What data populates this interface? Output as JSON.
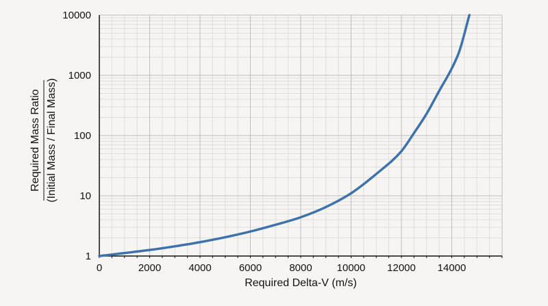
{
  "chart_data": {
    "type": "line",
    "xlabel": "Required Delta-V (m/s)",
    "ylabel_top": "Required Mass Ratio",
    "ylabel_bottom": "(Initial Mass / Final Mass)",
    "x_scale": "linear",
    "y_scale": "log",
    "xlim": [
      0,
      16000
    ],
    "ylim": [
      1,
      10000
    ],
    "x_ticks": [
      0,
      2000,
      4000,
      6000,
      8000,
      10000,
      12000,
      14000
    ],
    "x_tick_labels": [
      "0",
      "2000",
      "4000",
      "6000",
      "8000",
      "10000",
      "12000",
      "14000"
    ],
    "y_ticks": [
      1,
      10,
      100,
      1000,
      10000
    ],
    "y_tick_labels": [
      "1",
      "10",
      "100",
      "1000",
      "10000"
    ],
    "grid": true,
    "legend": "none",
    "series": [
      {
        "color": "#3f72ab",
        "x": [
          0,
          1000,
          2000,
          3000,
          4000,
          5000,
          6000,
          7000,
          8000,
          9000,
          10000,
          11000,
          12000,
          12500,
          13000,
          13500,
          14000,
          14300,
          14700
        ],
        "y": [
          1.0,
          1.12,
          1.26,
          1.45,
          1.7,
          2.05,
          2.55,
          3.3,
          4.4,
          6.5,
          11,
          23,
          55,
          110,
          230,
          550,
          1300,
          2500,
          10000
        ]
      }
    ]
  },
  "colors": {
    "background": "#f6f5f1",
    "line": "#3f72ab",
    "grid_major": "#bdbdbd",
    "grid_minor": "#dedede",
    "axis": "#111111"
  }
}
